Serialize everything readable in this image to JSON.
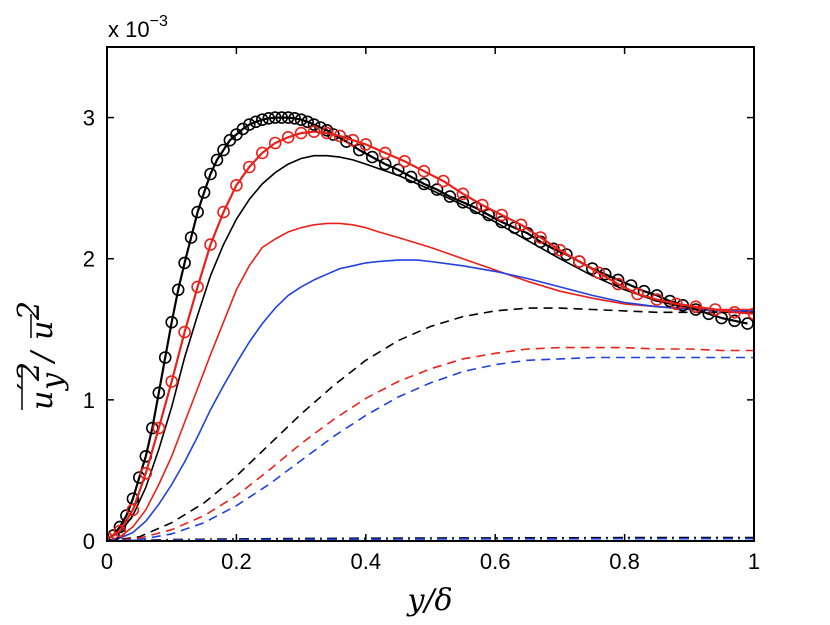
{
  "chart_data": {
    "type": "line",
    "title": "",
    "xlabel": "y/δ",
    "ylabel": "u'_y² / ū²",
    "ylabel_parts": {
      "main": "u",
      "prime": "′",
      "sub": "y",
      "sup": "2",
      "slash": "/",
      "den": "u",
      "den_sup": "2"
    },
    "xlim": [
      0,
      1
    ],
    "ylim": [
      0,
      3.5
    ],
    "y_scale_label_prefix": "x 10",
    "y_scale_label_exp": "−3",
    "xticks": [
      0,
      0.2,
      0.4,
      0.6,
      0.8,
      1
    ],
    "xtick_labels": [
      "0",
      "0.2",
      "0.4",
      "0.6",
      "0.8",
      "1"
    ],
    "yticks": [
      0,
      1,
      2,
      3
    ],
    "ytick_labels": [
      "0",
      "1",
      "2",
      "3"
    ],
    "grid": false,
    "legend": "none",
    "colors": {
      "black": "#000000",
      "red": "#e8221a",
      "blue": "#2140e0"
    },
    "series": [
      {
        "name": "black-circles",
        "color": "#000000",
        "style": "solid-marker",
        "x": [
          0,
          0.01,
          0.02,
          0.03,
          0.04,
          0.05,
          0.06,
          0.07,
          0.08,
          0.09,
          0.1,
          0.11,
          0.12,
          0.13,
          0.14,
          0.15,
          0.16,
          0.17,
          0.18,
          0.19,
          0.2,
          0.21,
          0.22,
          0.23,
          0.24,
          0.25,
          0.26,
          0.27,
          0.28,
          0.29,
          0.3,
          0.31,
          0.32,
          0.33,
          0.34,
          0.35,
          0.37,
          0.39,
          0.41,
          0.43,
          0.45,
          0.47,
          0.49,
          0.51,
          0.53,
          0.55,
          0.57,
          0.59,
          0.61,
          0.63,
          0.65,
          0.67,
          0.69,
          0.71,
          0.73,
          0.75,
          0.77,
          0.79,
          0.81,
          0.83,
          0.85,
          0.87,
          0.89,
          0.91,
          0.93,
          0.95,
          0.97,
          0.99
        ],
        "y": [
          0.02,
          0.04,
          0.1,
          0.18,
          0.3,
          0.45,
          0.6,
          0.8,
          1.05,
          1.3,
          1.55,
          1.78,
          1.97,
          2.15,
          2.33,
          2.47,
          2.6,
          2.7,
          2.77,
          2.84,
          2.88,
          2.92,
          2.95,
          2.97,
          2.985,
          2.995,
          3.0,
          3.0,
          3.0,
          2.995,
          2.985,
          2.97,
          2.95,
          2.93,
          2.91,
          2.88,
          2.83,
          2.77,
          2.72,
          2.67,
          2.63,
          2.58,
          2.53,
          2.49,
          2.44,
          2.4,
          2.36,
          2.31,
          2.26,
          2.22,
          2.18,
          2.12,
          2.07,
          2.03,
          1.98,
          1.93,
          1.89,
          1.85,
          1.81,
          1.77,
          1.74,
          1.7,
          1.67,
          1.64,
          1.61,
          1.58,
          1.56,
          1.54
        ]
      },
      {
        "name": "red-circles",
        "color": "#e8221a",
        "style": "solid-marker",
        "x": [
          0,
          0.02,
          0.04,
          0.06,
          0.08,
          0.1,
          0.12,
          0.14,
          0.16,
          0.18,
          0.2,
          0.22,
          0.24,
          0.26,
          0.28,
          0.3,
          0.32,
          0.34,
          0.36,
          0.38,
          0.4,
          0.43,
          0.46,
          0.49,
          0.52,
          0.55,
          0.58,
          0.61,
          0.64,
          0.67,
          0.7,
          0.73,
          0.76,
          0.79,
          0.82,
          0.85,
          0.88,
          0.91,
          0.94,
          0.97,
          1.0
        ],
        "y": [
          0.02,
          0.07,
          0.22,
          0.48,
          0.8,
          1.13,
          1.48,
          1.8,
          2.1,
          2.33,
          2.52,
          2.65,
          2.75,
          2.82,
          2.86,
          2.89,
          2.9,
          2.89,
          2.87,
          2.84,
          2.81,
          2.75,
          2.69,
          2.62,
          2.55,
          2.46,
          2.38,
          2.31,
          2.24,
          2.15,
          2.06,
          1.98,
          1.9,
          1.82,
          1.75,
          1.71,
          1.68,
          1.66,
          1.64,
          1.62,
          1.61
        ]
      },
      {
        "name": "black-solid",
        "color": "#000000",
        "style": "solid",
        "x": [
          0,
          0.02,
          0.04,
          0.06,
          0.08,
          0.1,
          0.12,
          0.14,
          0.16,
          0.18,
          0.2,
          0.22,
          0.24,
          0.26,
          0.28,
          0.3,
          0.32,
          0.34,
          0.36,
          0.38,
          0.4,
          0.45,
          0.5,
          0.55,
          0.6,
          0.65,
          0.7,
          0.75,
          0.8,
          0.85,
          0.9,
          0.95,
          1.0
        ],
        "y": [
          0.02,
          0.06,
          0.18,
          0.38,
          0.65,
          0.95,
          1.3,
          1.6,
          1.88,
          2.1,
          2.28,
          2.42,
          2.53,
          2.61,
          2.67,
          2.71,
          2.73,
          2.73,
          2.72,
          2.7,
          2.67,
          2.59,
          2.49,
          2.38,
          2.26,
          2.13,
          2.0,
          1.88,
          1.78,
          1.7,
          1.65,
          1.63,
          1.62
        ]
      },
      {
        "name": "red-solid",
        "color": "#e8221a",
        "style": "solid",
        "x": [
          0,
          0.02,
          0.04,
          0.06,
          0.08,
          0.1,
          0.12,
          0.14,
          0.16,
          0.18,
          0.2,
          0.22,
          0.24,
          0.26,
          0.28,
          0.3,
          0.32,
          0.34,
          0.36,
          0.38,
          0.4,
          0.42,
          0.45,
          0.5,
          0.55,
          0.6,
          0.65,
          0.7,
          0.75,
          0.8,
          0.85,
          0.9,
          0.95,
          1.0
        ],
        "y": [
          0.0,
          0.03,
          0.1,
          0.22,
          0.4,
          0.6,
          0.84,
          1.08,
          1.32,
          1.55,
          1.78,
          1.95,
          2.08,
          2.14,
          2.19,
          2.22,
          2.24,
          2.25,
          2.25,
          2.24,
          2.22,
          2.19,
          2.15,
          2.08,
          2.0,
          1.92,
          1.84,
          1.77,
          1.72,
          1.68,
          1.66,
          1.65,
          1.64,
          1.64
        ]
      },
      {
        "name": "blue-solid",
        "color": "#2140e0",
        "style": "solid",
        "x": [
          0,
          0.02,
          0.04,
          0.06,
          0.08,
          0.1,
          0.12,
          0.14,
          0.16,
          0.18,
          0.2,
          0.22,
          0.24,
          0.26,
          0.28,
          0.3,
          0.32,
          0.34,
          0.36,
          0.38,
          0.4,
          0.42,
          0.45,
          0.48,
          0.5,
          0.55,
          0.6,
          0.65,
          0.7,
          0.75,
          0.8,
          0.85,
          0.9,
          0.95,
          1.0
        ],
        "y": [
          0.0,
          0.02,
          0.06,
          0.14,
          0.26,
          0.4,
          0.56,
          0.74,
          0.93,
          1.1,
          1.26,
          1.41,
          1.54,
          1.65,
          1.74,
          1.8,
          1.85,
          1.89,
          1.93,
          1.95,
          1.97,
          1.98,
          1.99,
          1.99,
          1.98,
          1.95,
          1.91,
          1.86,
          1.8,
          1.74,
          1.69,
          1.66,
          1.64,
          1.63,
          1.63
        ]
      },
      {
        "name": "black-dashed",
        "color": "#000000",
        "style": "dashed",
        "x": [
          0,
          0.05,
          0.1,
          0.15,
          0.2,
          0.25,
          0.3,
          0.35,
          0.4,
          0.45,
          0.5,
          0.55,
          0.6,
          0.65,
          0.7,
          0.75,
          0.8,
          0.85,
          0.9,
          0.95,
          1.0
        ],
        "y": [
          0.0,
          0.03,
          0.13,
          0.27,
          0.46,
          0.68,
          0.9,
          1.1,
          1.28,
          1.42,
          1.52,
          1.59,
          1.63,
          1.65,
          1.65,
          1.64,
          1.63,
          1.62,
          1.62,
          1.62,
          1.62
        ]
      },
      {
        "name": "red-dashed",
        "color": "#e8221a",
        "style": "dashed",
        "x": [
          0,
          0.05,
          0.1,
          0.15,
          0.2,
          0.25,
          0.3,
          0.35,
          0.4,
          0.45,
          0.5,
          0.55,
          0.6,
          0.65,
          0.7,
          0.75,
          0.8,
          0.85,
          0.9,
          0.95,
          1.0
        ],
        "y": [
          0.0,
          0.02,
          0.08,
          0.18,
          0.32,
          0.5,
          0.69,
          0.86,
          1.01,
          1.13,
          1.22,
          1.29,
          1.33,
          1.36,
          1.37,
          1.37,
          1.37,
          1.36,
          1.36,
          1.35,
          1.35
        ]
      },
      {
        "name": "blue-dashed",
        "color": "#2140e0",
        "style": "dashed",
        "x": [
          0,
          0.05,
          0.1,
          0.15,
          0.2,
          0.25,
          0.3,
          0.35,
          0.4,
          0.45,
          0.5,
          0.55,
          0.6,
          0.65,
          0.7,
          0.75,
          0.8,
          0.85,
          0.9,
          0.95,
          1.0
        ],
        "y": [
          0.0,
          0.01,
          0.05,
          0.13,
          0.25,
          0.4,
          0.57,
          0.74,
          0.89,
          1.02,
          1.12,
          1.2,
          1.25,
          1.28,
          1.29,
          1.3,
          1.3,
          1.3,
          1.3,
          1.3,
          1.3
        ]
      },
      {
        "name": "black-dashdot",
        "color": "#000000",
        "style": "dashdot",
        "x": [
          0,
          0.05,
          0.1,
          0.2,
          0.3,
          0.4,
          0.5,
          0.6,
          0.7,
          0.8,
          0.9,
          1.0
        ],
        "y": [
          0.0,
          0.005,
          0.01,
          0.015,
          0.018,
          0.02,
          0.021,
          0.022,
          0.023,
          0.024,
          0.024,
          0.025
        ]
      },
      {
        "name": "blue-dashdot",
        "color": "#2140e0",
        "style": "dashdot",
        "x": [
          0,
          0.05,
          0.1,
          0.2,
          0.3,
          0.4,
          0.5,
          0.6,
          0.7,
          0.8,
          0.9,
          1.0
        ],
        "y": [
          0.0,
          0.003,
          0.006,
          0.01,
          0.012,
          0.013,
          0.014,
          0.015,
          0.015,
          0.016,
          0.016,
          0.016
        ]
      }
    ]
  }
}
